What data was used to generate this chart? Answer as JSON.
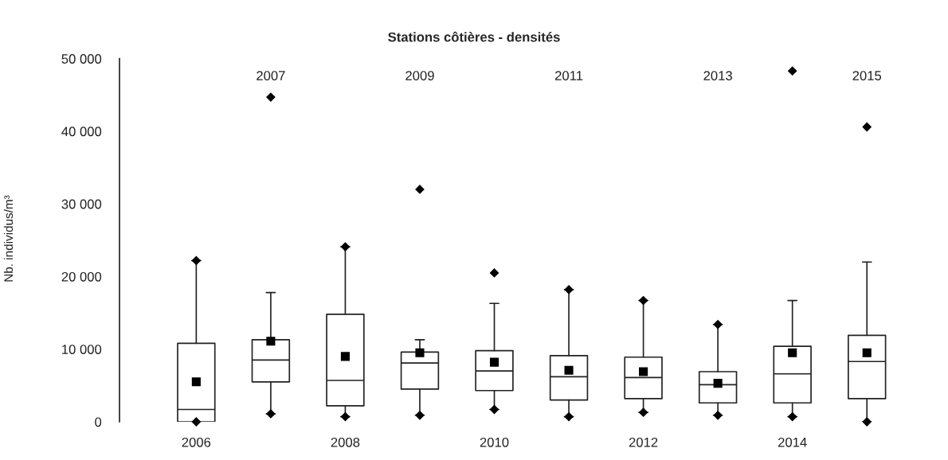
{
  "chart_data": {
    "type": "box",
    "title": "Stations côtières - densités",
    "ylabel": "Nb. individus/m³",
    "categories": [
      "2006",
      "2007",
      "2008",
      "2009",
      "2010",
      "2011",
      "2012",
      "2013",
      "2014",
      "2015"
    ],
    "boxes": [
      {
        "low": 0,
        "q1": 0,
        "median": 1700,
        "q3": 10800,
        "high": 22200,
        "mean": 5500,
        "outliers": [
          0,
          22200
        ]
      },
      {
        "low": 1100,
        "q1": 5500,
        "median": 8500,
        "q3": 11300,
        "high": 17800,
        "mean": 11100,
        "outliers": [
          1100,
          44700
        ]
      },
      {
        "low": 700,
        "q1": 2200,
        "median": 5700,
        "q3": 14800,
        "high": 24100,
        "mean": 9000,
        "outliers": [
          700,
          24100
        ]
      },
      {
        "low": 900,
        "q1": 4500,
        "median": 8100,
        "q3": 9600,
        "high": 11300,
        "mean": 9500,
        "outliers": [
          900,
          32000
        ]
      },
      {
        "low": 1700,
        "q1": 4300,
        "median": 7000,
        "q3": 9800,
        "high": 16300,
        "mean": 8200,
        "outliers": [
          1700,
          20500
        ]
      },
      {
        "low": 700,
        "q1": 3000,
        "median": 6200,
        "q3": 9100,
        "high": 18200,
        "mean": 7100,
        "outliers": [
          700,
          18200
        ]
      },
      {
        "low": 1300,
        "q1": 3200,
        "median": 6100,
        "q3": 8900,
        "high": 16700,
        "mean": 6900,
        "outliers": [
          1300,
          16700
        ]
      },
      {
        "low": 900,
        "q1": 2600,
        "median": 5100,
        "q3": 6900,
        "high": 13400,
        "mean": 5300,
        "outliers": [
          900,
          13400
        ]
      },
      {
        "low": 700,
        "q1": 2600,
        "median": 6600,
        "q3": 10400,
        "high": 16700,
        "mean": 9500,
        "outliers": [
          700,
          48300
        ]
      },
      {
        "low": 0,
        "q1": 3200,
        "median": 8300,
        "q3": 11900,
        "high": 22000,
        "mean": 9500,
        "outliers": [
          0,
          40600
        ]
      }
    ],
    "ylim": [
      0,
      50000
    ],
    "yticks": [
      {
        "value": 0,
        "label": "0"
      },
      {
        "value": 10000,
        "label": "10 000"
      },
      {
        "value": 20000,
        "label": "20 000"
      },
      {
        "value": 30000,
        "label": "30 000"
      },
      {
        "value": 40000,
        "label": "40 000"
      },
      {
        "value": 50000,
        "label": "50 000"
      }
    ],
    "grid": false
  }
}
